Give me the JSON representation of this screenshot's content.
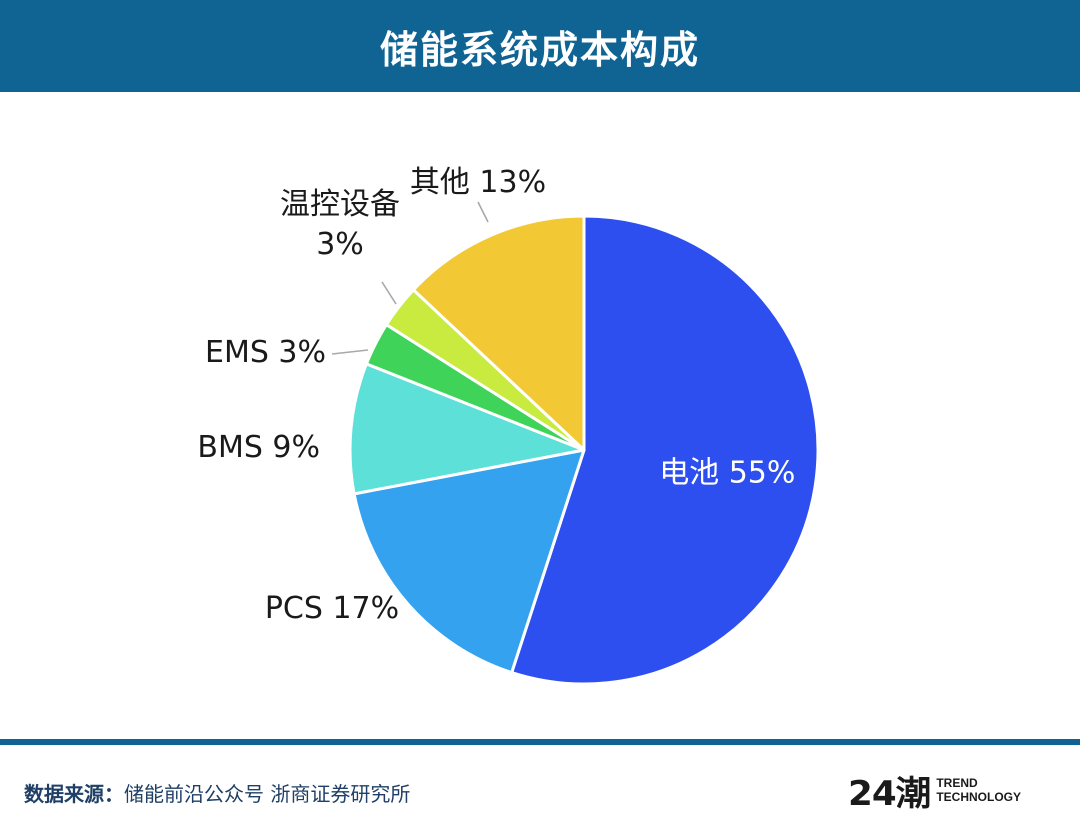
{
  "header": {
    "title": "储能系统成本构成"
  },
  "chart_data": {
    "type": "pie",
    "title": "储能系统成本构成",
    "slices": [
      {
        "label": "电池",
        "value": 55,
        "display": "电池 55%",
        "color": "#2d4ff0"
      },
      {
        "label": "PCS",
        "value": 17,
        "display": "PCS 17%",
        "color": "#35a2f0"
      },
      {
        "label": "BMS",
        "value": 9,
        "display": "BMS 9%",
        "color": "#5ce0d8"
      },
      {
        "label": "EMS",
        "value": 3,
        "display": "EMS 3%",
        "color": "#3fd35a"
      },
      {
        "label": "温控设备",
        "value": 3,
        "display_lines": [
          "温控设备",
          "3%"
        ],
        "color": "#c9ea3f"
      },
      {
        "label": "其他",
        "value": 13,
        "display": "其他 13%",
        "color": "#f2c935"
      }
    ]
  },
  "footer": {
    "source_label": "数据来源：",
    "source_text": "储能前沿公众号 浙商证券研究所",
    "brand_mark": "24潮",
    "brand_line1": "TREND",
    "brand_line2": "TECHNOLOGY"
  }
}
